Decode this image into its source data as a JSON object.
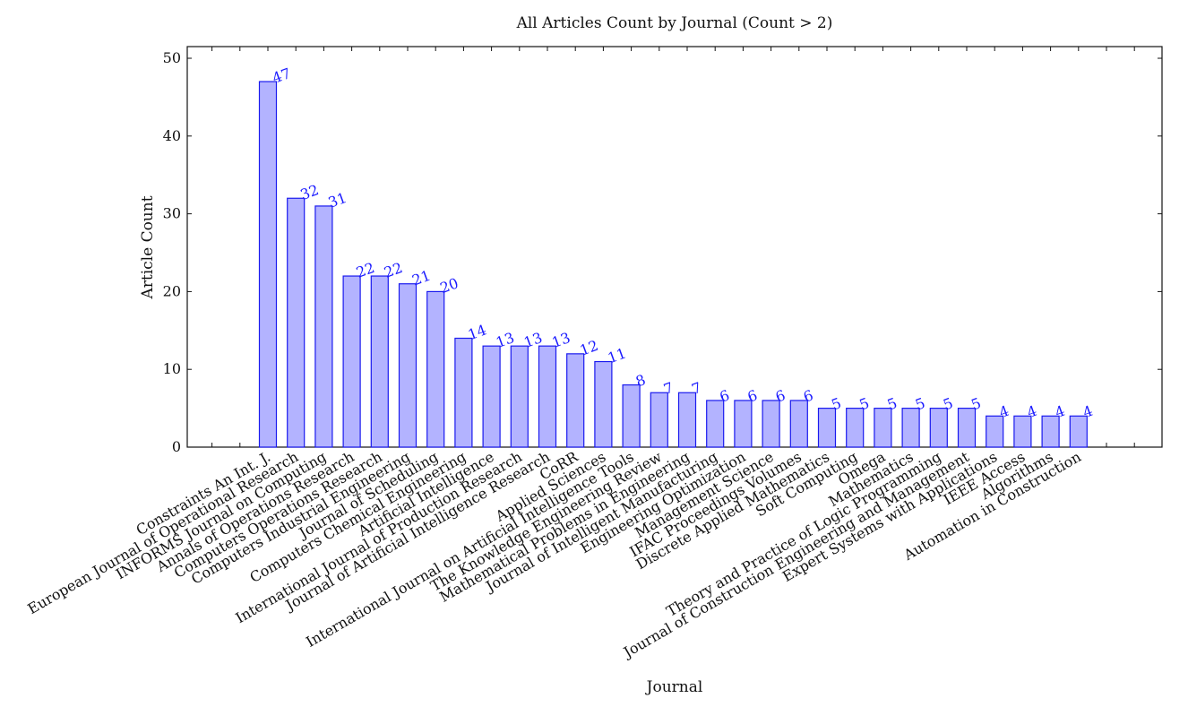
{
  "chart_data": {
    "type": "bar",
    "title": "All Articles Count by Journal (Count > 2)",
    "xlabel": "Journal",
    "ylabel": "Article Count",
    "ylim": [
      0,
      51.5
    ],
    "yticks": [
      0,
      10,
      20,
      30,
      40,
      50
    ],
    "grid": false,
    "legend": "none",
    "colors": {
      "bar_fill": "#b3b3ff",
      "bar_stroke": "#1a1aee",
      "data_label": "#1a1aff"
    },
    "categories": [
      "Constraints An Int. J.",
      "European Journal of Operational Research",
      "INFORMS Journal on Computing",
      "Annals of Operations Research",
      "Computers Operations Research",
      "Computers Industrial Engineering",
      "Journal of Scheduling",
      "Computers Chemical Engineering",
      "Artificial Intelligence",
      "International Journal of Production Research",
      "Journal of Artificial Intelligence Research",
      "CoRR",
      "Applied Sciences",
      "International Journal on Artificial Intelligence Tools",
      "The Knowledge Engineering Review",
      "Mathematical Problems in Engineering",
      "Journal of Intelligent Manufacturing",
      "Engineering Optimization",
      "Management Science",
      "IFAC Proceedings Volumes",
      "Discrete Applied Mathematics",
      "Soft Computing",
      "Omega",
      "Mathematics",
      "Theory and Practice of Logic Programming",
      "Journal of Construction Engineering and Management",
      "Expert Systems with Applications",
      "IEEE Access",
      "Algorithms",
      "Automation in Construction"
    ],
    "values": [
      47,
      32,
      31,
      22,
      22,
      21,
      20,
      14,
      13,
      13,
      13,
      12,
      11,
      8,
      7,
      7,
      6,
      6,
      6,
      6,
      5,
      5,
      5,
      5,
      5,
      5,
      4,
      4,
      4,
      4
    ]
  }
}
